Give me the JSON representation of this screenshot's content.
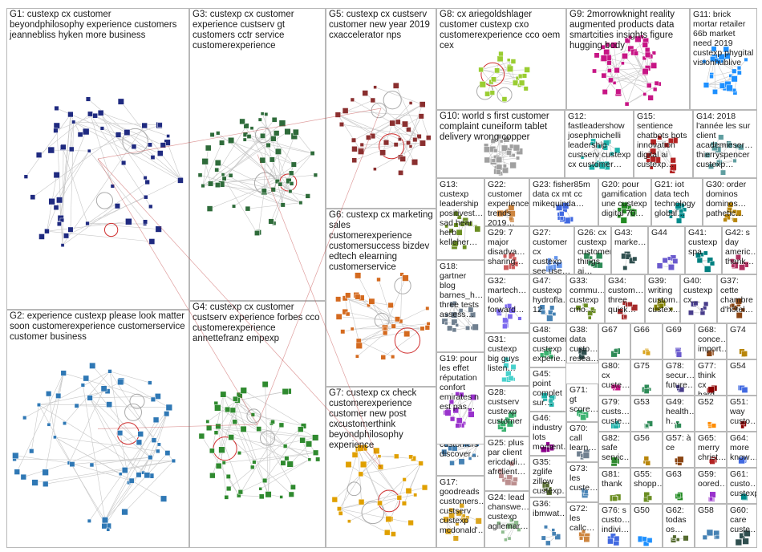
{
  "title": "",
  "groups": [
    {
      "id": "G1",
      "label": "G1: custexp cx customer beyondphilosophy experience customers jeannebliss hyken more business",
      "color": "#1f2a80"
    },
    {
      "id": "G2",
      "label": "G2: experience custexp please look matter soon customerexperience customerservice customer business",
      "color": "#2f78b5"
    },
    {
      "id": "G3",
      "label": "G3: custexp cx customer experience custserv gt customers cctr service customerexperience",
      "color": "#2e6b3a"
    },
    {
      "id": "G4",
      "label": "G4: custexp cx customer custserv experience forbes cco customerexperience annettefranz empexp",
      "color": "#2f8a2f"
    },
    {
      "id": "G5",
      "label": "G5: custexp cx custserv customer new year 2019 cxaccelerator nps",
      "color": "#8a2f2f"
    },
    {
      "id": "G6",
      "label": "G6: custexp cx marketing sales customerexperience customersuccess bizdev edtech elearning customerservice",
      "color": "#d46a1f"
    },
    {
      "id": "G7",
      "label": "G7: custexp cx check customerexperience customer new post cxcustomerthink beyondphilosophy experience",
      "color": "#e0a000"
    },
    {
      "id": "G8",
      "label": "G8: cx ariegoldshlager customer custexp cxo customerexperience cco oem cex",
      "color": "#9acd32"
    },
    {
      "id": "G9",
      "label": "G9: 2morrowknight reality augmented products data smartcities insights figure hugging body",
      "color": "#c71585"
    },
    {
      "id": "G10",
      "label": "G10: world s first customer complaint cuneiform tablet delivery wrong copper",
      "color": "#a0a0a0"
    },
    {
      "id": "G11",
      "label": "G11: brick mortar retailer 66b market need 2019 custexp phygital visionhublive",
      "color": "#1e90ff"
    },
    {
      "id": "G12",
      "label": "G12: fastleadershow josephmichelli leadership custserv custexp cx customer…",
      "color": "#20b2aa"
    },
    {
      "id": "G13",
      "label": "G13: custexp leadership positivest… sad hear herb kelleher…",
      "color": "#6b8e23"
    },
    {
      "id": "G14",
      "label": "G14: 2018 l'année les sur client academieser… thierryspencer custexp…",
      "color": "#5f9ea0"
    },
    {
      "id": "G15",
      "label": "G15: sentience chatbots bots innovation digital ai custexp…",
      "color": "#b22222"
    },
    {
      "id": "G16",
      "label": "G16: gt custexp sam… h… use tools customers discover…",
      "color": "#4682b4"
    },
    {
      "id": "G17",
      "label": "G17: goodreads customers… custserv custexp mcdonald'…",
      "color": "#daa520"
    },
    {
      "id": "G18",
      "label": "G18: gartner blog barnes_h… three tests assess…",
      "color": "#708090"
    },
    {
      "id": "G19",
      "label": "G19: pour les effet réputation confort emirates n est pas…",
      "color": "#9932cc"
    },
    {
      "id": "G20",
      "label": "G20: pour gamification une custexp digital 70…",
      "color": "#228b22"
    },
    {
      "id": "G21",
      "label": "G21: iot data tech technology global…",
      "color": "#008b8b"
    },
    {
      "id": "G22",
      "label": "G22: customer experience trends 2019…",
      "color": "#cd853f"
    },
    {
      "id": "G23",
      "label": "G23: fisher85m data cx mt cc mikequinda…",
      "color": "#4169e1"
    },
    {
      "id": "G24",
      "label": "G24: lead chanswe… custexp agilemar…",
      "color": "#8fbc8f"
    },
    {
      "id": "G25",
      "label": "G25: plus par client ericdadi… afrclient…",
      "color": "#bc8f8f"
    },
    {
      "id": "G26",
      "label": "G26: cx custexp customer things ai…",
      "color": "#2e8b57"
    },
    {
      "id": "G27",
      "label": "G27: customer cx custexp see use…",
      "color": "#6495ed"
    },
    {
      "id": "G28",
      "label": "G28: custserv custexp customer",
      "color": "#3cb371"
    },
    {
      "id": "G29",
      "label": "G29: 7 major disadva… sharing…",
      "color": "#cd5c5c"
    },
    {
      "id": "G30",
      "label": "G30: order dominos dominos… pathetic…",
      "color": "#b8860b"
    },
    {
      "id": "G31",
      "label": "G31: custexp big guys listen…",
      "color": "#48d1cc"
    },
    {
      "id": "G32",
      "label": "G32: martech… look forward…",
      "color": "#7b68ee"
    },
    {
      "id": "G33",
      "label": "G33: commu… custexp cmo…",
      "color": "#6b8e23"
    },
    {
      "id": "G34",
      "label": "G34: custom… three quick…",
      "color": "#a52a2a"
    },
    {
      "id": "G35",
      "label": "G35: zglife zillow custexp…",
      "color": "#556b2f"
    },
    {
      "id": "G36",
      "label": "G36: ibmwat…",
      "color": "#4682b4"
    },
    {
      "id": "G37",
      "label": "G37: cette chambre d'hôtel…",
      "color": "#8b4513"
    },
    {
      "id": "G38",
      "label": "G38: data custo… resea… share…",
      "color": "#2f4f4f"
    },
    {
      "id": "G39",
      "label": "G39: writing custom… custex…",
      "color": "#808000"
    },
    {
      "id": "G40",
      "label": "G40: custexp cx…",
      "color": "#483d8b"
    },
    {
      "id": "G41",
      "label": "G41: custexp spa",
      "color": "#008080"
    },
    {
      "id": "G42",
      "label": "G42: s day americ… thank…",
      "color": "#b03060"
    },
    {
      "id": "G43",
      "label": "G43: marke…",
      "color": "#2f4f4f"
    },
    {
      "id": "G44",
      "label": "G44",
      "color": "#6a5acd"
    },
    {
      "id": "G45",
      "label": "G45: point complet sur…",
      "color": "#20b2aa"
    },
    {
      "id": "G46",
      "label": "G46: industry lots moment…",
      "color": "#8b008b"
    },
    {
      "id": "G47",
      "label": "G47: custexp hydrofla… 12",
      "color": "#4682b4"
    },
    {
      "id": "G48",
      "label": "G48: customer custexp experie…",
      "color": "#3cb371"
    },
    {
      "id": "G49",
      "label": "G49: health… h…",
      "color": "#2e8b57"
    },
    {
      "id": "G50",
      "label": "G50",
      "color": "#1e90ff"
    },
    {
      "id": "G51",
      "label": "G51: way custo…",
      "color": "#8b0000"
    },
    {
      "id": "G52",
      "label": "G52",
      "color": "#ff8c00"
    },
    {
      "id": "G53",
      "label": "G53",
      "color": "#2e8b57"
    },
    {
      "id": "G54",
      "label": "G54",
      "color": "#4169e1"
    },
    {
      "id": "G55",
      "label": "G55: shopp…",
      "color": "#6b8e23"
    },
    {
      "id": "G56",
      "label": "G56",
      "color": "#b8860b"
    },
    {
      "id": "G57",
      "label": "G57: à ce",
      "color": "#8b4513"
    },
    {
      "id": "G58",
      "label": "G58",
      "color": "#4682b4"
    },
    {
      "id": "G59",
      "label": "G59: oored…",
      "color": "#9932cc"
    },
    {
      "id": "G60",
      "label": "G60: care custe…",
      "color": "#2f4f4f"
    },
    {
      "id": "G61",
      "label": "G61: custo… custexp…",
      "color": "#008b8b"
    },
    {
      "id": "G62",
      "label": "G62: todas os…",
      "color": "#556b2f"
    },
    {
      "id": "G63",
      "label": "G63",
      "color": "#228b22"
    },
    {
      "id": "G64",
      "label": "G64: more know…",
      "color": "#4169e1"
    },
    {
      "id": "G65",
      "label": "G65: merry christ…",
      "color": "#b22222"
    },
    {
      "id": "G66",
      "label": "G66",
      "color": "#daa520"
    },
    {
      "id": "G67",
      "label": "G67",
      "color": "#2e8b57"
    },
    {
      "id": "G68",
      "label": "G68: conce… import…",
      "color": "#8b4513"
    },
    {
      "id": "G69",
      "label": "G69",
      "color": "#6a5acd"
    },
    {
      "id": "G70",
      "label": "G70: call learn…",
      "color": "#708090"
    },
    {
      "id": "G71",
      "label": "G71: gt score…",
      "color": "#3cb371"
    },
    {
      "id": "G72",
      "label": "G72: les callc…",
      "color": "#cd853f"
    },
    {
      "id": "G73",
      "label": "G73: les custe…",
      "color": "#4682b4"
    },
    {
      "id": "G74",
      "label": "G74",
      "color": "#b8860b"
    },
    {
      "id": "G75",
      "label": "G75",
      "color": "#2e8b57"
    },
    {
      "id": "G76",
      "label": "G76: s custo… indivi…",
      "color": "#4169e1"
    },
    {
      "id": "G77",
      "label": "G77: think cx hard…",
      "color": "#8b0000"
    },
    {
      "id": "G78",
      "label": "G78: secur… future…",
      "color": "#483d8b"
    },
    {
      "id": "G79",
      "label": "G79: custs… custe…",
      "color": "#20b2aa"
    },
    {
      "id": "G80",
      "label": "G80: cx custe…",
      "color": "#c71585"
    },
    {
      "id": "G81",
      "label": "G81: thank",
      "color": "#6b8e23"
    },
    {
      "id": "G82",
      "label": "G82: safe servic…",
      "color": "#2f8a2f"
    }
  ]
}
